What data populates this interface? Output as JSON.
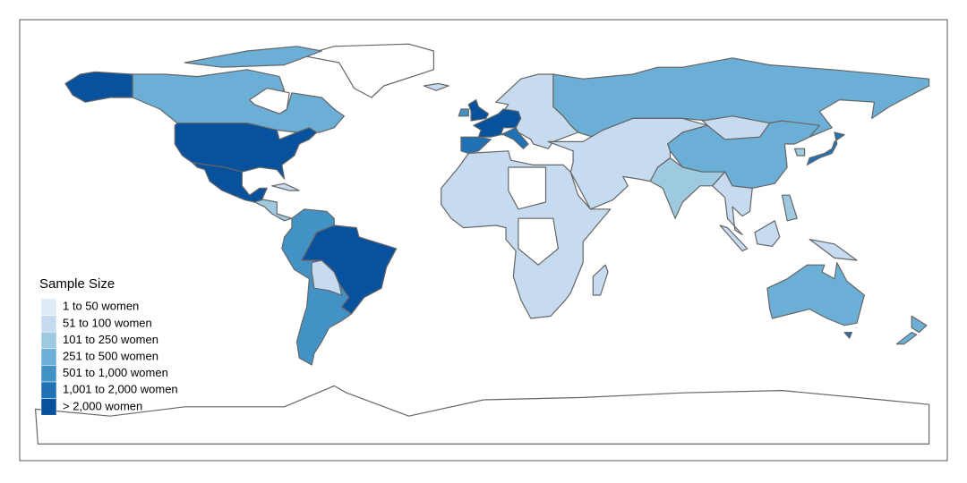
{
  "legend": {
    "title": "Sample Size",
    "items": [
      {
        "label": "1 to 50 women",
        "color": "#deebf7"
      },
      {
        "label": "51 to 100 women",
        "color": "#c6dbef"
      },
      {
        "label": "101 to 250 women",
        "color": "#9ecae1"
      },
      {
        "label": "251 to 500 women",
        "color": "#6baed6"
      },
      {
        "label": "501 to 1,000 women",
        "color": "#4292c6"
      },
      {
        "label": "1,001 to 2,000 women",
        "color": "#2171b5"
      },
      {
        "label": "> 2,000 women",
        "color": "#08519c"
      }
    ]
  }
}
